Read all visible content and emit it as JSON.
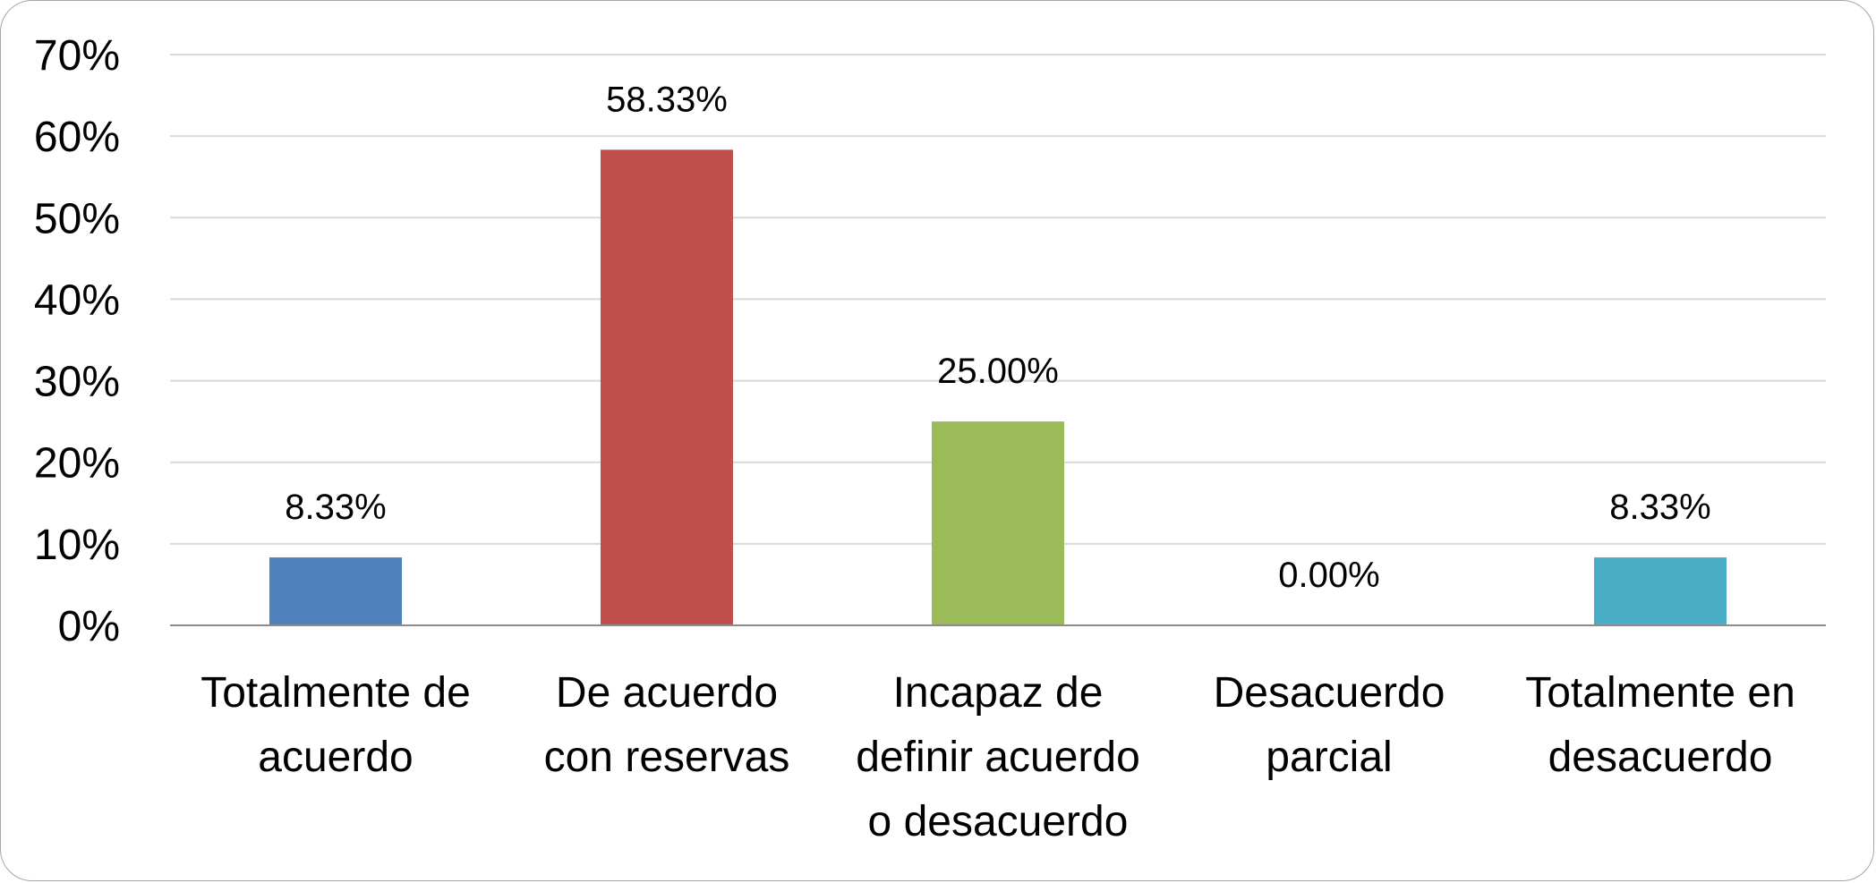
{
  "chart_data": {
    "type": "bar",
    "categories": [
      [
        "Totalmente de",
        "acuerdo"
      ],
      [
        "De acuerdo",
        "con reservas"
      ],
      [
        "Incapaz de",
        "definir acuerdo",
        "o desacuerdo"
      ],
      [
        "Desacuerdo",
        "parcial"
      ],
      [
        "Totalmente en",
        "desacuerdo"
      ]
    ],
    "values": [
      8.33,
      58.33,
      25.0,
      0.0,
      8.33
    ],
    "data_labels": [
      "8.33%",
      "58.33%",
      "25.00%",
      "0.00%",
      "8.33%"
    ],
    "colors": [
      "#4f81bd",
      "#c0504d",
      "#9bbb59",
      "#8064a2",
      "#4bacc6"
    ],
    "ylim": [
      0,
      70
    ],
    "yticks": [
      0,
      10,
      20,
      30,
      40,
      50,
      60,
      70
    ],
    "ytick_labels": [
      "0%",
      "10%",
      "20%",
      "30%",
      "40%",
      "50%",
      "60%",
      "70%"
    ],
    "grid": true,
    "legend": "none",
    "title": "",
    "xlabel": "",
    "ylabel": ""
  }
}
